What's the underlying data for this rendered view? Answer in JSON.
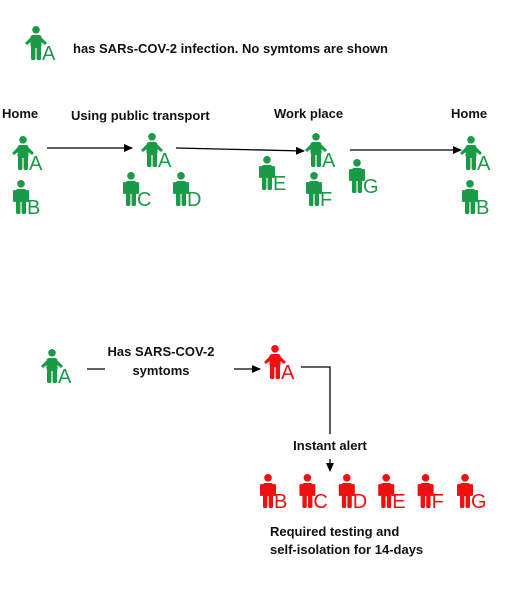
{
  "colors": {
    "healthy": "#1a9a46",
    "infected": "#ee1111",
    "arrow": "#000000"
  },
  "icons": {
    "person": "person-icon"
  },
  "legend": {
    "person": "A",
    "text": "has SARs-COV-2 infection. No symtoms are shown"
  },
  "journey": {
    "stages": [
      {
        "label": "Home",
        "people": [
          "A",
          "B"
        ]
      },
      {
        "label": "Using public transport",
        "people": [
          "A",
          "C",
          "D"
        ]
      },
      {
        "label": "Work place",
        "people": [
          "E",
          "A",
          "F",
          "G"
        ]
      },
      {
        "label": "Home",
        "people": [
          "A",
          "B"
        ]
      }
    ]
  },
  "alert_flow": {
    "start_person": "A",
    "condition_line1": "Has SARS-COV-2",
    "condition_line2": "symtoms",
    "infected_person": "A",
    "alert_label": "Instant alert",
    "contacts": [
      "B",
      "C",
      "D",
      "E",
      "F",
      "G"
    ],
    "outcome_line1": "Required testing and",
    "outcome_line2": "self-isolation for 14-days"
  }
}
